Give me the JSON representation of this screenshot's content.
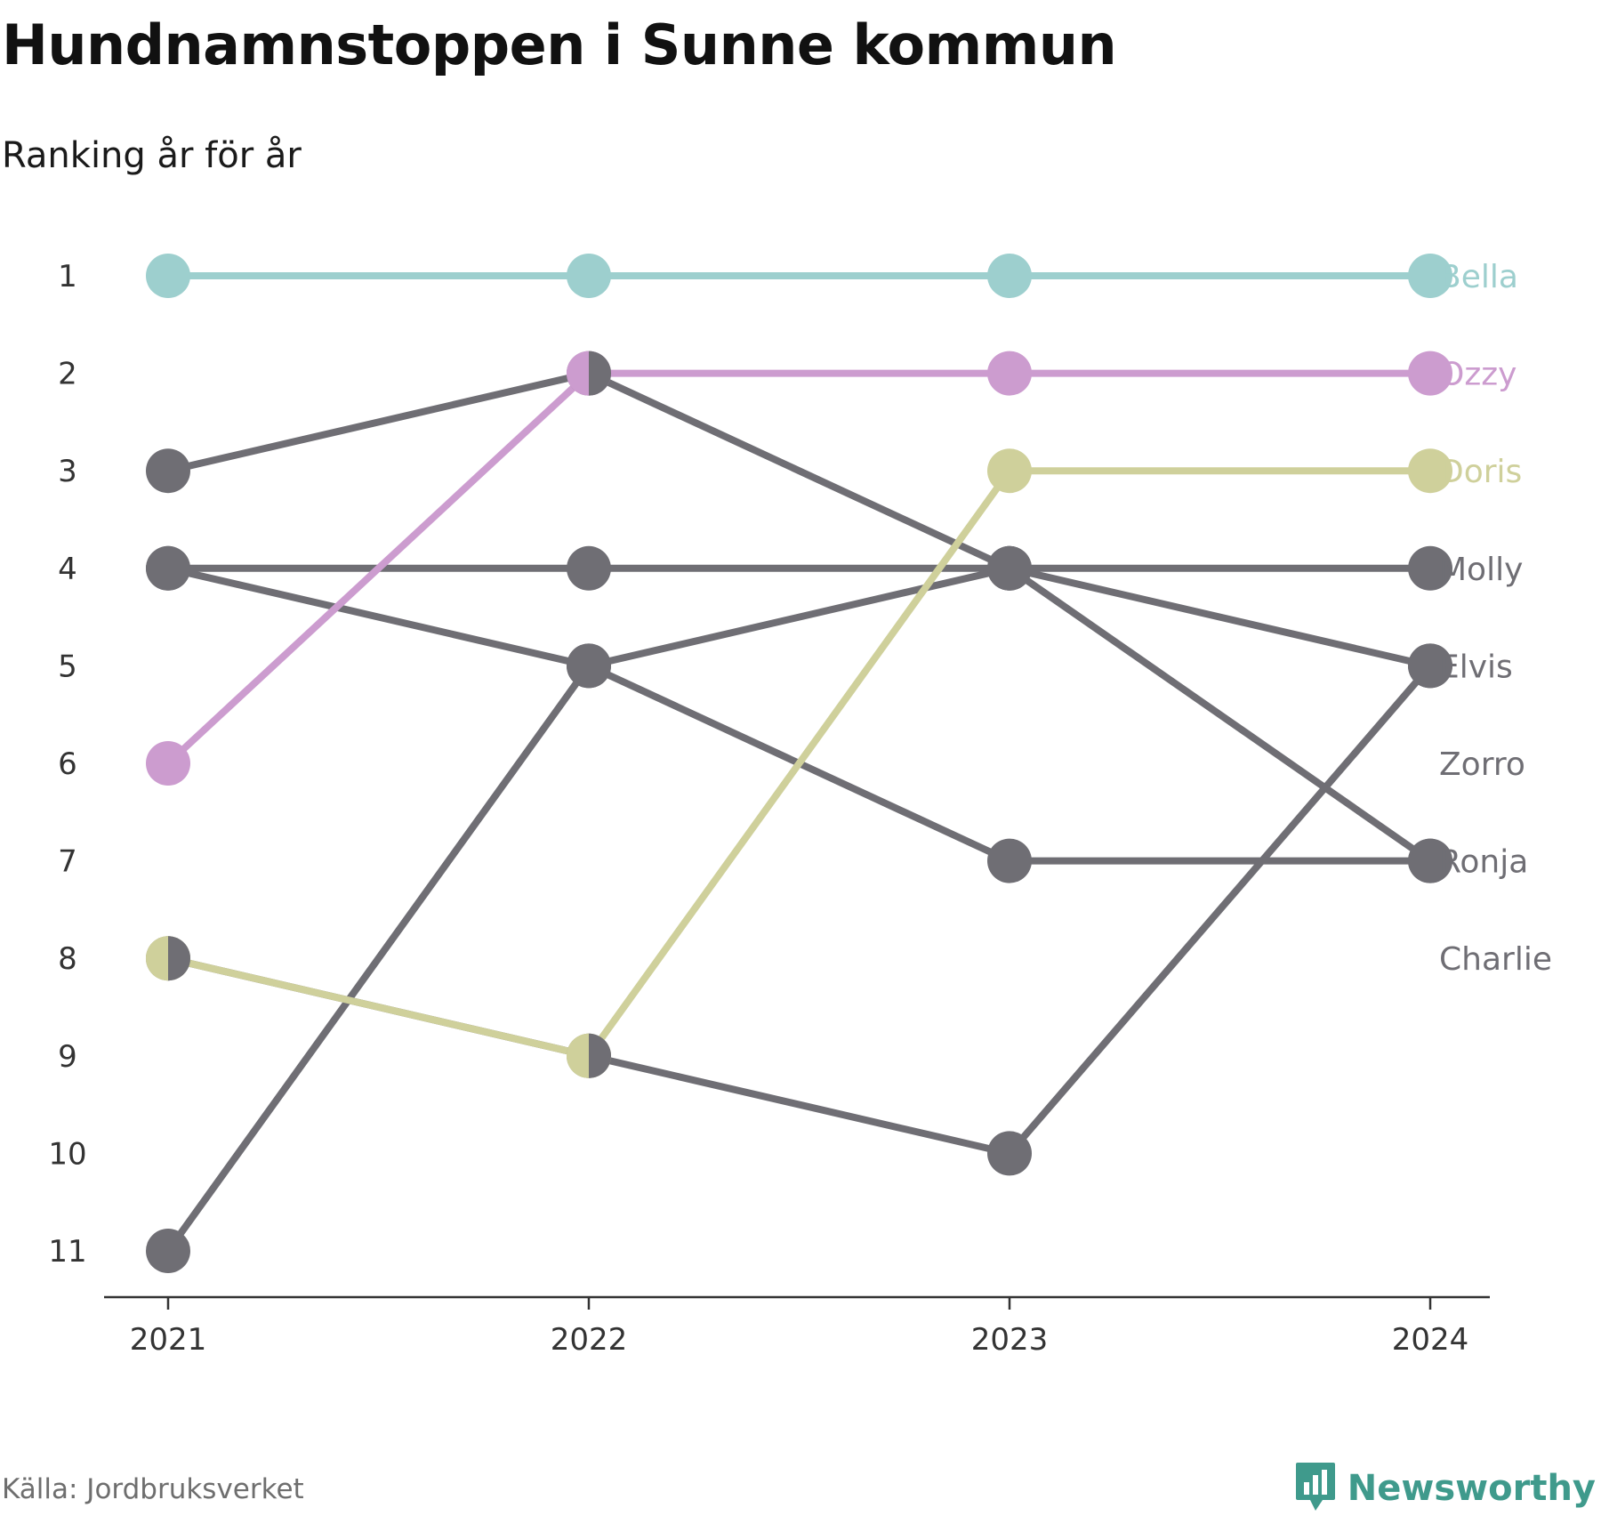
{
  "header": {
    "title": "Hundnamnstoppen i Sunne kommun",
    "subtitle": "Ranking år för år"
  },
  "footer": {
    "source": "Källa: Jordbruksverket",
    "brand": "Newsworthy",
    "brand_icon": "bar-chart-speech-bubble-icon"
  },
  "colors": {
    "bella": "#9dcfce",
    "ozzy": "#cc9ccf",
    "doris": "#cfd09b",
    "gray": "#6f6e74",
    "brand": "#3f9a8c"
  },
  "chart_data": {
    "type": "line",
    "title": "Hundnamnstoppen i Sunne kommun",
    "subtitle": "Ranking år för år",
    "x": [
      "2021",
      "2022",
      "2023",
      "2024"
    ],
    "ylim": [
      1,
      11
    ],
    "y_reversed": true,
    "y_ticks": [
      1,
      2,
      3,
      4,
      5,
      6,
      7,
      8,
      9,
      10,
      11
    ],
    "grid": false,
    "series": [
      {
        "name": "Bella",
        "values": [
          1,
          1,
          1,
          1
        ],
        "color": "#9dcfce"
      },
      {
        "name": "Ozzy",
        "values": [
          6,
          2,
          2,
          2
        ],
        "color": "#cc9ccf"
      },
      {
        "name": "Doris",
        "values": [
          8,
          9,
          3,
          3
        ],
        "color": "#cfd09b"
      },
      {
        "name": "Molly",
        "values": [
          4,
          4,
          4,
          4
        ],
        "color": "#6f6e74"
      },
      {
        "name": "Elvis",
        "values": [
          11,
          5,
          4,
          5
        ],
        "color": "#6f6e74"
      },
      {
        "name": "Zorro",
        "values": [
          8,
          9,
          10,
          5
        ],
        "color": "#6f6e74"
      },
      {
        "name": "Ronja",
        "values": [
          4,
          5,
          7,
          7
        ],
        "color": "#6f6e74"
      },
      {
        "name": "Charlie",
        "values": [
          3,
          2,
          4,
          7
        ],
        "color": "#6f6e74"
      }
    ],
    "end_labels": [
      {
        "text": "Bella",
        "rank": 1,
        "color": "#9dcfce"
      },
      {
        "text": "Ozzy",
        "rank": 2,
        "color": "#cc9ccf"
      },
      {
        "text": "Doris",
        "rank": 3,
        "color": "#cfd09b"
      },
      {
        "text": "Molly",
        "rank": 4,
        "color": "#6f6e74"
      },
      {
        "text": "Elvis",
        "rank": 5,
        "color": "#6f6e74"
      },
      {
        "text": "Zorro",
        "rank": 6,
        "color": "#6f6e74"
      },
      {
        "text": "Ronja",
        "rank": 7,
        "color": "#6f6e74"
      },
      {
        "text": "Charlie",
        "rank": 8,
        "color": "#6f6e74"
      }
    ],
    "split_markers": [
      {
        "x": "2021",
        "rank": 8,
        "left_color": "#cfd09b",
        "right_color": "#6f6e74"
      },
      {
        "x": "2022",
        "rank": 9,
        "left_color": "#cfd09b",
        "right_color": "#6f6e74"
      },
      {
        "x": "2022",
        "rank": 2,
        "left_color": "#cc9ccf",
        "right_color": "#6f6e74"
      }
    ]
  }
}
